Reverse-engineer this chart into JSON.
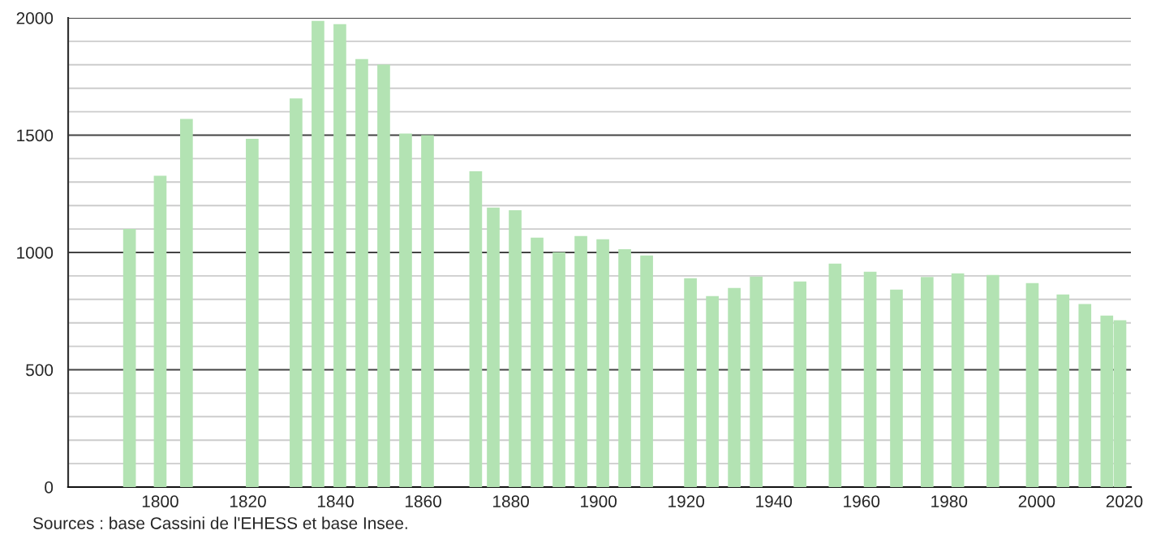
{
  "chart_data": {
    "type": "bar",
    "x": [
      1793,
      1800,
      1806,
      1821,
      1831,
      1836,
      1841,
      1846,
      1851,
      1856,
      1861,
      1872,
      1876,
      1881,
      1886,
      1891,
      1896,
      1901,
      1906,
      1911,
      1921,
      1926,
      1931,
      1936,
      1946,
      1954,
      1962,
      1968,
      1975,
      1982,
      1990,
      1999,
      2006,
      2011,
      2016,
      2019
    ],
    "values": [
      1100,
      1327,
      1569,
      1484,
      1657,
      1987,
      1973,
      1824,
      1801,
      1507,
      1500,
      1346,
      1191,
      1180,
      1063,
      1001,
      1070,
      1056,
      1014,
      987,
      890,
      814,
      849,
      897,
      876,
      952,
      918,
      842,
      895,
      911,
      904,
      869,
      821,
      780,
      731,
      711
    ],
    "color": "#b3e3b3",
    "xlim": [
      1779,
      2021.5
    ],
    "xticks": [
      1800,
      1820,
      1840,
      1860,
      1880,
      1900,
      1920,
      1940,
      1960,
      1980,
      2000,
      2020
    ],
    "ylim": [
      0,
      2000
    ],
    "yticks": [
      0,
      {
        "value": 100,
        "label": null
      },
      {
        "value": 200,
        "label": null
      },
      {
        "value": 300,
        "label": null
      },
      {
        "value": 400,
        "label": null
      },
      500,
      {
        "value": 600,
        "label": null
      },
      {
        "value": 700,
        "label": null
      },
      {
        "value": 800,
        "label": null
      },
      {
        "value": 900,
        "label": null
      },
      1000,
      {
        "value": 1100,
        "label": null
      },
      {
        "value": 1200,
        "label": null
      },
      {
        "value": 1300,
        "label": null
      },
      {
        "value": 1400,
        "label": null
      },
      1500,
      {
        "value": 1600,
        "label": null
      },
      {
        "value": 1700,
        "label": null
      },
      {
        "value": 1800,
        "label": null
      },
      {
        "value": 1900,
        "label": null
      },
      2000
    ],
    "grid": "y",
    "annotations": [
      "Sources : base Cassini de l'EHESS et base Insee."
    ]
  }
}
